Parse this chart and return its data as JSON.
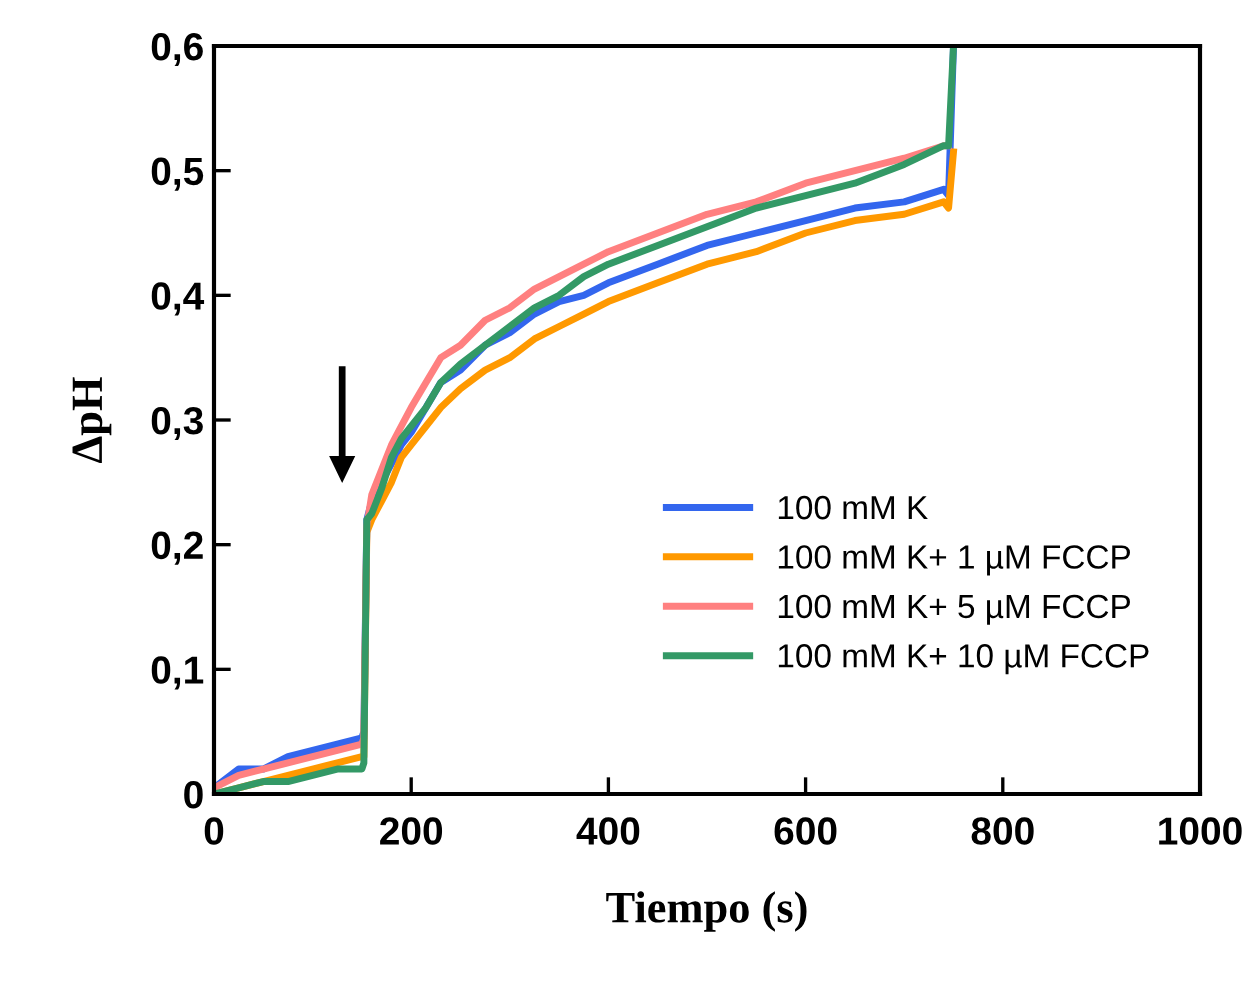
{
  "chart_data": {
    "type": "line",
    "xlabel": "Tiempo (s)",
    "ylabel": "ΔpH",
    "xlim": [
      0,
      1000
    ],
    "xticks": [
      0,
      200,
      400,
      600,
      800,
      1000
    ],
    "ylim": [
      0,
      0.6
    ],
    "yticks": [
      {
        "value": 0,
        "label": "0"
      },
      {
        "value": 0.1,
        "label": "0,1"
      },
      {
        "value": 0.2,
        "label": "0,2"
      },
      {
        "value": 0.3,
        "label": "0,3"
      },
      {
        "value": 0.4,
        "label": "0,4"
      },
      {
        "value": 0.5,
        "label": "0,5"
      },
      {
        "value": 0.6,
        "label": "0,6"
      }
    ],
    "x": [
      0,
      25,
      50,
      75,
      100,
      125,
      150,
      152,
      155,
      160,
      170,
      180,
      190,
      200,
      215,
      230,
      250,
      275,
      300,
      325,
      350,
      375,
      400,
      450,
      500,
      550,
      600,
      650,
      700,
      740,
      745,
      750
    ],
    "grid": false,
    "legend": "bottom right",
    "marker": "none",
    "line_style": "solid",
    "series": [
      {
        "name": "100 mM K",
        "color": "#3366ee",
        "values": [
          0.005,
          0.02,
          0.02,
          0.03,
          0.035,
          0.04,
          0.045,
          0.05,
          0.22,
          0.235,
          0.25,
          0.265,
          0.28,
          0.29,
          0.31,
          0.33,
          0.34,
          0.36,
          0.37,
          0.385,
          0.395,
          0.4,
          0.41,
          0.425,
          0.44,
          0.45,
          0.46,
          0.47,
          0.475,
          0.485,
          0.48,
          0.6
        ]
      },
      {
        "name": "100 mM K+ 1 µM FCCP",
        "color": "#ff9900",
        "values": [
          0.0,
          0.005,
          0.01,
          0.015,
          0.02,
          0.025,
          0.03,
          0.03,
          0.21,
          0.22,
          0.235,
          0.25,
          0.27,
          0.28,
          0.295,
          0.31,
          0.325,
          0.34,
          0.35,
          0.365,
          0.375,
          0.385,
          0.395,
          0.41,
          0.425,
          0.435,
          0.45,
          0.46,
          0.465,
          0.475,
          0.47,
          0.515
        ]
      },
      {
        "name": "100 mM K+ 5 µM FCCP",
        "color": "#ff8080",
        "values": [
          0.005,
          0.015,
          0.02,
          0.025,
          0.03,
          0.035,
          0.04,
          0.045,
          0.215,
          0.24,
          0.26,
          0.28,
          0.295,
          0.31,
          0.33,
          0.35,
          0.36,
          0.38,
          0.39,
          0.405,
          0.415,
          0.425,
          0.435,
          0.45,
          0.465,
          0.475,
          0.49,
          0.5,
          0.51,
          0.52,
          0.52,
          null
        ]
      },
      {
        "name": "100 mM K+ 10 µM FCCP",
        "color": "#339966",
        "values": [
          0.0,
          0.005,
          0.01,
          0.01,
          0.015,
          0.02,
          0.02,
          0.025,
          0.22,
          0.225,
          0.245,
          0.27,
          0.285,
          0.295,
          0.31,
          0.33,
          0.345,
          0.36,
          0.375,
          0.39,
          0.4,
          0.415,
          0.425,
          0.44,
          0.455,
          0.47,
          0.48,
          0.49,
          0.505,
          0.52,
          0.52,
          0.6
        ]
      }
    ]
  }
}
